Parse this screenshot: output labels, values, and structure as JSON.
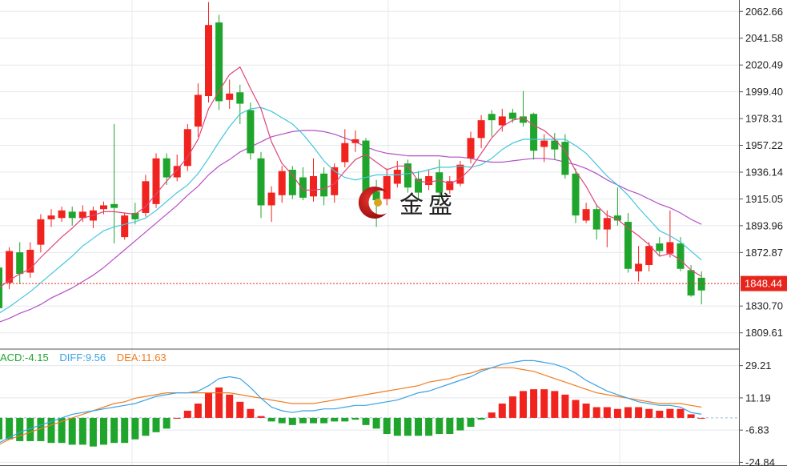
{
  "brand": {
    "name": "金盛"
  },
  "colors": {
    "up": "#f0231e",
    "down": "#1fa52b",
    "ma5": "#e0457b",
    "ma10": "#42c6dd",
    "ma20": "#b44fc6",
    "diff": "#3aa2e6",
    "dea": "#f07d22",
    "macd_label": "#1fa52b",
    "grid": "#e4e8ee",
    "price_tag": "#e8251d"
  },
  "macd_legend": {
    "macd": "ACD:-4.15",
    "diff": "DIFF:9.56",
    "dea": "DEA:11.63"
  },
  "price_tag": "1848.44",
  "chart_data": [
    {
      "type": "candlestick",
      "y_ticks": [
        "2062.66",
        "2041.58",
        "2020.49",
        "1999.40",
        "1978.31",
        "1957.22",
        "1936.14",
        "1915.05",
        "1893.96",
        "1872.87",
        "1830.70",
        "1809.61"
      ],
      "ylim": [
        1805,
        2066
      ],
      "last_price": 1848.44,
      "candles": [
        [
          1861,
          1829,
          1868,
          1825
        ],
        [
          1849,
          1874,
          1877,
          1844
        ],
        [
          1873,
          1856,
          1881,
          1848
        ],
        [
          1857,
          1875,
          1881,
          1853
        ],
        [
          1879,
          1899,
          1903,
          1873
        ],
        [
          1899,
          1902,
          1907,
          1893
        ],
        [
          1900,
          1906,
          1909,
          1897
        ],
        [
          1905,
          1900,
          1909,
          1894
        ],
        [
          1900,
          1905,
          1910,
          1897
        ],
        [
          1898,
          1906,
          1909,
          1892
        ],
        [
          1907,
          1910,
          1913,
          1903
        ],
        [
          1911,
          1908,
          1974,
          1880
        ],
        [
          1885,
          1902,
          1904,
          1883
        ],
        [
          1904,
          1899,
          1912,
          1895
        ],
        [
          1904,
          1929,
          1934,
          1901
        ],
        [
          1911,
          1947,
          1951,
          1908
        ],
        [
          1947,
          1932,
          1951,
          1926
        ],
        [
          1932,
          1941,
          1950,
          1929
        ],
        [
          1941,
          1970,
          1974,
          1937
        ],
        [
          1972,
          1997,
          2006,
          1964
        ],
        [
          1996,
          2052,
          2070,
          1991
        ],
        [
          2054,
          1992,
          2060,
          1985
        ],
        [
          1993,
          1998,
          2009,
          1986
        ],
        [
          1999,
          1990,
          2005,
          1974
        ],
        [
          1985,
          1951,
          1991,
          1946
        ],
        [
          1947,
          1910,
          1952,
          1900
        ],
        [
          1910,
          1920,
          1925,
          1897
        ],
        [
          1918,
          1937,
          1941,
          1912
        ],
        [
          1938,
          1918,
          1941,
          1915
        ],
        [
          1932,
          1916,
          1940,
          1914
        ],
        [
          1917,
          1933,
          1947,
          1913
        ],
        [
          1935,
          1917,
          1940,
          1910
        ],
        [
          1918,
          1940,
          1943,
          1912
        ],
        [
          1944,
          1959,
          1970,
          1940
        ],
        [
          1959,
          1962,
          1969,
          1952
        ],
        [
          1961,
          1918,
          1963,
          1913
        ],
        [
          1921,
          1914,
          1930,
          1893
        ],
        [
          1915,
          1933,
          1939,
          1910
        ],
        [
          1927,
          1938,
          1945,
          1924
        ],
        [
          1943,
          1924,
          1946,
          1920
        ],
        [
          1931,
          1920,
          1937,
          1915
        ],
        [
          1926,
          1933,
          1938,
          1922
        ],
        [
          1936,
          1920,
          1946,
          1913
        ],
        [
          1922,
          1929,
          1933,
          1919
        ],
        [
          1927,
          1942,
          1945,
          1925
        ],
        [
          1947,
          1963,
          1968,
          1943
        ],
        [
          1963,
          1977,
          1981,
          1955
        ],
        [
          1982,
          1977,
          1985,
          1964
        ],
        [
          1973,
          1980,
          1986,
          1968
        ],
        [
          1983,
          1978,
          1986,
          1975
        ],
        [
          1980,
          1975,
          2000,
          1972
        ],
        [
          1982,
          1953,
          1983,
          1946
        ],
        [
          1956,
          1961,
          1966,
          1944
        ],
        [
          1961,
          1954,
          1967,
          1946
        ],
        [
          1960,
          1934,
          1966,
          1931
        ],
        [
          1935,
          1902,
          1939,
          1896
        ],
        [
          1898,
          1907,
          1912,
          1896
        ],
        [
          1907,
          1891,
          1911,
          1883
        ],
        [
          1891,
          1900,
          1906,
          1877
        ],
        [
          1902,
          1898,
          1924,
          1894
        ],
        [
          1897,
          1860,
          1904,
          1857
        ],
        [
          1858,
          1864,
          1878,
          1850
        ],
        [
          1863,
          1878,
          1881,
          1858
        ],
        [
          1880,
          1874,
          1885,
          1870
        ],
        [
          1872,
          1881,
          1906,
          1869
        ],
        [
          1880,
          1860,
          1885,
          1858
        ],
        [
          1859,
          1839,
          1863,
          1838
        ],
        [
          1853,
          1843,
          1858,
          1832
        ]
      ],
      "ma5": [
        1845,
        1851,
        1856,
        1860,
        1869,
        1877,
        1885,
        1892,
        1900,
        1902,
        1905,
        1905,
        1904,
        1903,
        1909,
        1919,
        1929,
        1938,
        1948,
        1962,
        1986,
        2000,
        2013,
        2019,
        2002,
        1986,
        1960,
        1943,
        1934,
        1922,
        1922,
        1923,
        1927,
        1937,
        1946,
        1950,
        1944,
        1938,
        1941,
        1941,
        1929,
        1928,
        1930,
        1927,
        1931,
        1939,
        1951,
        1963,
        1972,
        1977,
        1979,
        1973,
        1969,
        1962,
        1953,
        1937,
        1925,
        1910,
        1902,
        1899,
        1892,
        1886,
        1879,
        1870,
        1872,
        1867,
        1859,
        1854
      ],
      "ma10": [
        1825,
        1830,
        1836,
        1842,
        1849,
        1856,
        1863,
        1870,
        1878,
        1884,
        1890,
        1893,
        1895,
        1897,
        1900,
        1906,
        1913,
        1920,
        1926,
        1935,
        1947,
        1960,
        1972,
        1982,
        1986,
        1987,
        1984,
        1979,
        1974,
        1966,
        1956,
        1945,
        1937,
        1932,
        1930,
        1932,
        1934,
        1934,
        1934,
        1935,
        1936,
        1938,
        1940,
        1940,
        1941,
        1940,
        1942,
        1947,
        1954,
        1959,
        1962,
        1962,
        1962,
        1962,
        1962,
        1957,
        1951,
        1942,
        1933,
        1926,
        1918,
        1908,
        1899,
        1890,
        1886,
        1881,
        1874,
        1867
      ],
      "ma20": [
        1818,
        1821,
        1825,
        1828,
        1832,
        1837,
        1841,
        1845,
        1850,
        1855,
        1861,
        1868,
        1875,
        1882,
        1889,
        1896,
        1903,
        1910,
        1918,
        1925,
        1934,
        1941,
        1946,
        1952,
        1956,
        1960,
        1964,
        1966,
        1968,
        1969,
        1969,
        1968,
        1966,
        1963,
        1960,
        1956,
        1953,
        1951,
        1950,
        1949,
        1949,
        1949,
        1949,
        1948,
        1948,
        1947,
        1945,
        1944,
        1944,
        1945,
        1946,
        1947,
        1947,
        1946,
        1944,
        1942,
        1939,
        1935,
        1930,
        1926,
        1922,
        1919,
        1915,
        1911,
        1908,
        1904,
        1899,
        1895
      ]
    },
    {
      "type": "macd",
      "y_ticks": [
        "29.21",
        "11.19",
        "-6.83",
        "-24.84"
      ],
      "ylim": [
        -26,
        38
      ],
      "macd": [
        -12,
        -12,
        -13,
        -13,
        -13,
        -14,
        -14,
        -15,
        -15,
        -16,
        -15,
        -14,
        -14,
        -12,
        -10,
        -8,
        -6,
        0,
        4,
        8,
        14,
        17,
        13,
        9,
        5,
        1,
        -2,
        -3,
        -4,
        -3,
        -3,
        -3,
        -2,
        -2,
        -1,
        -4,
        -6,
        -9,
        -10,
        -10,
        -10,
        -10,
        -9,
        -9,
        -7,
        -5,
        -1,
        3,
        8,
        12,
        15,
        16,
        16,
        15,
        13,
        10,
        8,
        6,
        6,
        5,
        6,
        6,
        5,
        4,
        5,
        5,
        2,
        0
      ],
      "diff": [
        -14,
        -11,
        -8,
        -6,
        -4,
        -2,
        0,
        2,
        3,
        4,
        5,
        6,
        7,
        8,
        10,
        12,
        13,
        14,
        14,
        15,
        18,
        22,
        23,
        22,
        17,
        11,
        6,
        4,
        3,
        4,
        4,
        5,
        5,
        6,
        7,
        7,
        8,
        9,
        10,
        12,
        14,
        15,
        17,
        19,
        21,
        23,
        26,
        28,
        30,
        31,
        32,
        32,
        31,
        30,
        28,
        25,
        21,
        18,
        15,
        13,
        11,
        9,
        8,
        7,
        7,
        6,
        3,
        2
      ],
      "dea": [
        -15,
        -12,
        -10,
        -8,
        -6,
        -4,
        -2,
        0,
        2,
        4,
        6,
        8,
        9,
        11,
        12,
        13,
        14,
        14,
        14,
        14,
        14,
        14,
        14,
        13,
        12,
        11,
        10,
        9,
        8,
        8,
        8,
        9,
        10,
        11,
        12,
        13,
        14,
        15,
        16,
        17,
        18,
        20,
        21,
        22,
        24,
        25,
        27,
        28,
        28,
        28,
        27,
        26,
        24,
        22,
        20,
        18,
        16,
        14,
        13,
        12,
        11,
        10,
        9,
        8,
        8,
        8,
        7,
        6
      ]
    }
  ]
}
